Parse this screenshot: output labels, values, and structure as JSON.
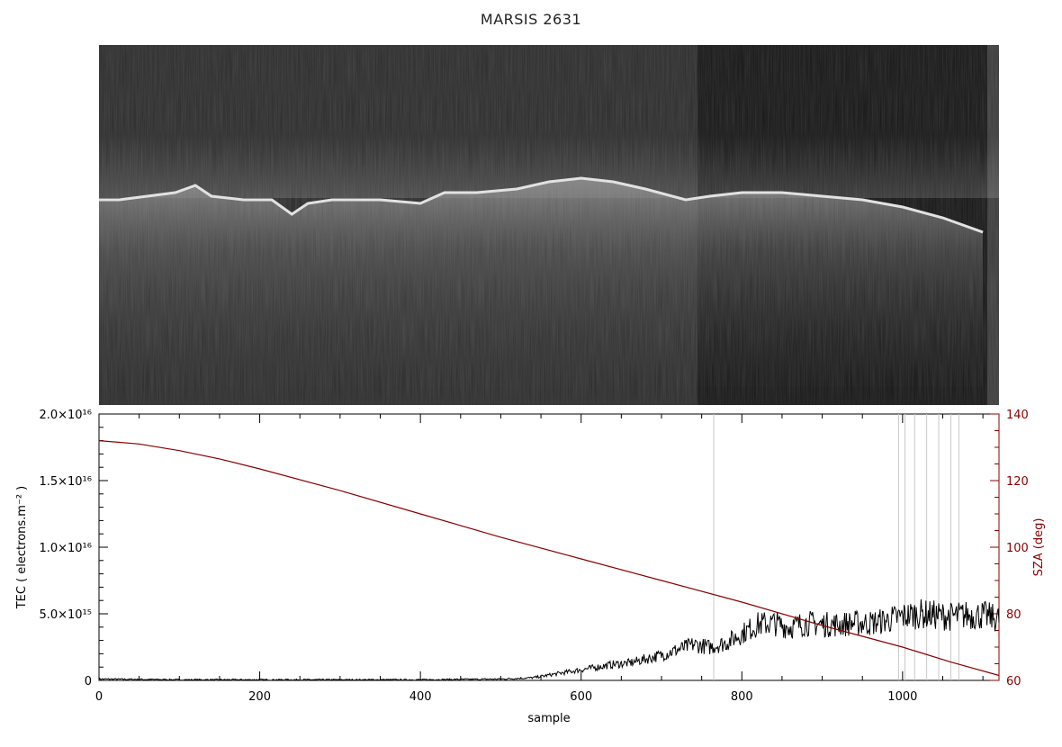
{
  "title": "MARSIS 2631",
  "chart_data": [
    {
      "type": "heatmap",
      "description_of_values": "",
      "grayscale": true,
      "surface_echo_trace": [
        [
          0,
          0.43
        ],
        [
          25,
          0.43
        ],
        [
          60,
          0.42
        ],
        [
          95,
          0.41
        ],
        [
          120,
          0.39
        ],
        [
          140,
          0.42
        ],
        [
          180,
          0.43
        ],
        [
          215,
          0.43
        ],
        [
          240,
          0.47
        ],
        [
          260,
          0.44
        ],
        [
          290,
          0.43
        ],
        [
          350,
          0.43
        ],
        [
          400,
          0.44
        ],
        [
          430,
          0.41
        ],
        [
          470,
          0.41
        ],
        [
          520,
          0.4
        ],
        [
          560,
          0.38
        ],
        [
          600,
          0.37
        ],
        [
          640,
          0.38
        ],
        [
          680,
          0.4
        ],
        [
          730,
          0.43
        ],
        [
          760,
          0.42
        ],
        [
          800,
          0.41
        ],
        [
          850,
          0.41
        ],
        [
          900,
          0.42
        ],
        [
          950,
          0.43
        ],
        [
          1000,
          0.45
        ],
        [
          1050,
          0.48
        ],
        [
          1100,
          0.52
        ]
      ],
      "dark_segment_start_sample": 745
    },
    {
      "type": "line",
      "xlabel": "sample",
      "ylabel": "TEC ( electrons.m⁻² )",
      "y2label": "SZA (deg)",
      "xlim": [
        0,
        1120
      ],
      "ylim": [
        0,
        2e+16
      ],
      "y2lim": [
        60,
        140
      ],
      "x_ticks": [
        "0",
        "200",
        "400",
        "600",
        "800",
        "1000"
      ],
      "y_ticks": [
        "0",
        "5.0×10¹⁵",
        "1.0×10¹⁶",
        "1.5×10¹⁶",
        "2.0×10¹⁶"
      ],
      "y2_ticks": [
        "60",
        "80",
        "100",
        "120",
        "140"
      ],
      "vertical_markers_x": [
        765,
        995,
        1003,
        1015,
        1030,
        1045,
        1060,
        1070
      ],
      "series": [
        {
          "axis": "left",
          "color": "#000000",
          "x": [
            0,
            100,
            200,
            300,
            400,
            500,
            540,
            560,
            580,
            600,
            620,
            640,
            660,
            680,
            700,
            720,
            740,
            760,
            780,
            800,
            820,
            840,
            860,
            880,
            900,
            920,
            940,
            960,
            980,
            1000,
            1020,
            1040,
            1060,
            1080,
            1100,
            1120
          ],
          "y": [
            100000000000000.0,
            50000000000000.0,
            50000000000000.0,
            50000000000000.0,
            50000000000000.0,
            100000000000000.0,
            200000000000000.0,
            400000000000000.0,
            600000000000000.0,
            800000000000000.0,
            1000000000000000.0,
            1200000000000000.0,
            1300000000000000.0,
            1600000000000000.0,
            1900000000000000.0,
            2300000000000000.0,
            2700000000000000.0,
            2500000000000000.0,
            2800000000000000.0,
            3500000000000000.0,
            4200000000000000.0,
            4300000000000000.0,
            4000000000000000.0,
            4300000000000000.0,
            4200000000000000.0,
            4200000000000000.0,
            4300000000000000.0,
            4300000000000000.0,
            4500000000000000.0,
            4800000000000000.0,
            5000000000000000.0,
            4900000000000000.0,
            4800000000000000.0,
            4900000000000000.0,
            4900000000000000.0,
            4600000000000000.0
          ]
        },
        {
          "axis": "right",
          "color": "#8b0000",
          "x": [
            0,
            50,
            100,
            150,
            200,
            300,
            400,
            500,
            600,
            700,
            800,
            900,
            1000,
            1060,
            1120
          ],
          "y": [
            132,
            131,
            129,
            126.5,
            123.5,
            117,
            110,
            103,
            96.5,
            90,
            83.5,
            76.5,
            70,
            65.5,
            61.5
          ]
        }
      ]
    }
  ]
}
